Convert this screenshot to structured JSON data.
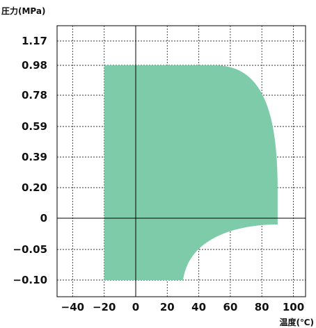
{
  "chart_data": {
    "type": "area",
    "ylabel": "圧力(MPa)",
    "xlabel": "温度(℃)",
    "xlim": [
      -50,
      110
    ],
    "x_ticks": [
      -40,
      -20,
      0,
      20,
      40,
      60,
      80,
      100
    ],
    "x_tick_labels": [
      "−40",
      "−20",
      "0",
      "20",
      "40",
      "60",
      "80",
      "100"
    ],
    "y_tick_labels": [
      "1.17",
      "0.98",
      "0.78",
      "0.59",
      "0.39",
      "0.20",
      "0",
      "−0.05",
      "−0.10"
    ],
    "y_ticks": [
      1.17,
      0.98,
      0.78,
      0.59,
      0.39,
      0.2,
      0,
      -0.05,
      -0.1
    ],
    "y_scale": "piecewise (equal spacing between labeled ticks)",
    "grid": true,
    "fill_color": "#7ecba9",
    "region": {
      "temperature_min": -20,
      "temperature_max": 90,
      "pressure_max": 0.98,
      "pressure_min": -0.1,
      "upper_right_corner": "rounded, from about (50, 0.98) down to about (90, 0.39)",
      "lower_right_cutout": "curved, from about (30, -0.10) to about (90, -0.01)"
    }
  }
}
